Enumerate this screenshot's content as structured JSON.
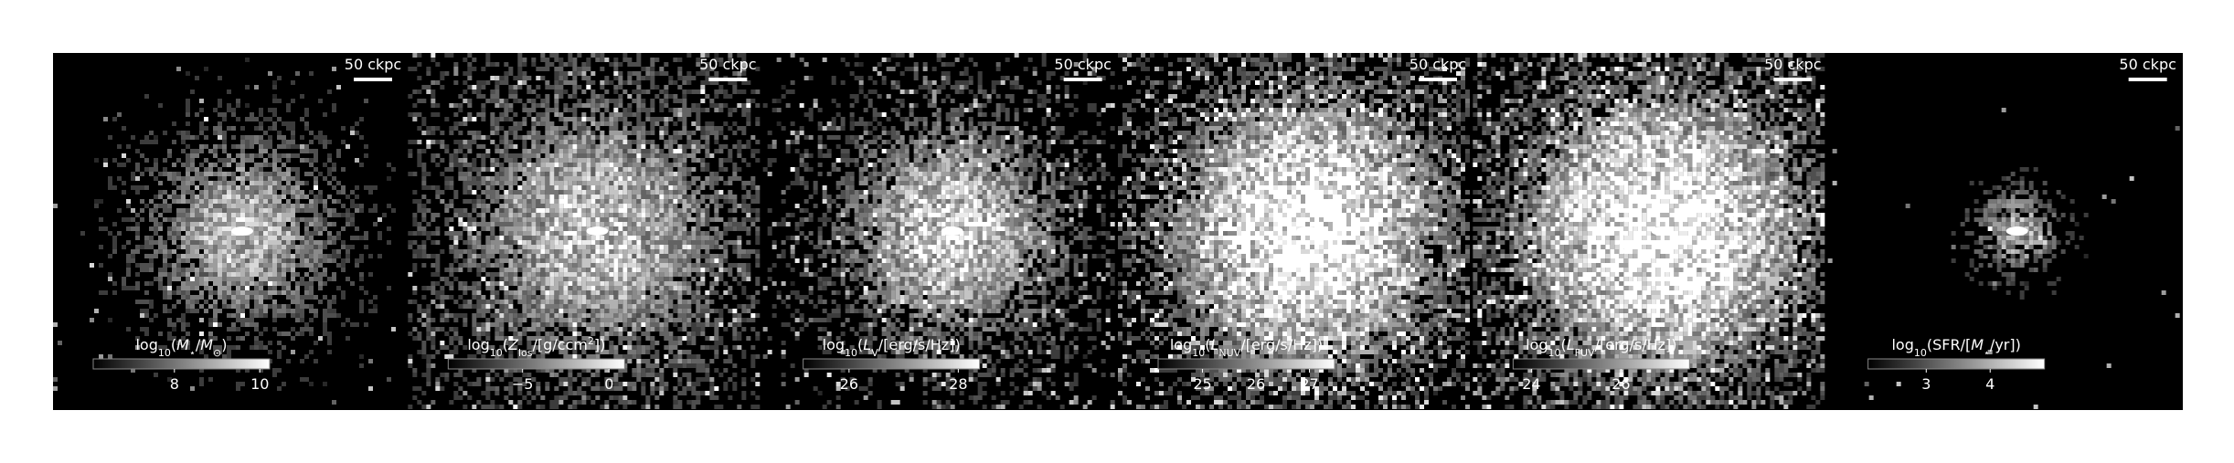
{
  "panels": [
    {
      "scale_bar": "50 ckpc",
      "colorbar": {
        "label": [
          {
            "text": "log"
          },
          {
            "text": "10",
            "sub": true
          },
          {
            "text": "("
          },
          {
            "text": "M",
            "italic": true
          },
          {
            "text": "⋆",
            "sub": true
          },
          {
            "text": "/"
          },
          {
            "text": "M",
            "italic": true
          },
          {
            "text": "⊙",
            "sub": true
          },
          {
            "text": ")"
          }
        ],
        "range": [
          6.1,
          10.23
        ],
        "ticks": [
          8,
          10
        ]
      }
    },
    {
      "scale_bar": "50 ckpc",
      "colorbar": {
        "label": [
          {
            "text": "log"
          },
          {
            "text": "10",
            "sub": true
          },
          {
            "text": "("
          },
          {
            "text": "Z",
            "italic": true
          },
          {
            "text": "los",
            "sub": true
          },
          {
            "text": "/[g/ccm"
          },
          {
            "text": "2",
            "sup": true
          },
          {
            "text": "])"
          }
        ],
        "range": [
          -9.3,
          0.9
        ],
        "ticks": [
          {
            "value": -5,
            "label": "−5"
          },
          0
        ]
      }
    },
    {
      "scale_bar": "50 ckpc",
      "colorbar": {
        "label": [
          {
            "text": "log"
          },
          {
            "text": "10",
            "sub": true
          },
          {
            "text": "("
          },
          {
            "text": "L",
            "italic": true
          },
          {
            "text": "V",
            "sub": true
          },
          {
            "text": "/[erg/s/Hz])"
          }
        ],
        "range": [
          25.16,
          28.39
        ],
        "ticks": [
          26,
          28
        ]
      }
    },
    {
      "scale_bar": "50 ckpc",
      "colorbar": {
        "label": [
          {
            "text": "log"
          },
          {
            "text": "10",
            "sub": true
          },
          {
            "text": "("
          },
          {
            "text": "L",
            "italic": true
          },
          {
            "text": "NUV",
            "sub": true
          },
          {
            "text": "/[erg/s/Hz])"
          }
        ],
        "range": [
          24.17,
          27.47
        ],
        "ticks": [
          25,
          26,
          27
        ]
      }
    },
    {
      "scale_bar": "50 ckpc",
      "colorbar": {
        "label": [
          {
            "text": "log"
          },
          {
            "text": "10",
            "sub": true
          },
          {
            "text": "("
          },
          {
            "text": "L",
            "italic": true
          },
          {
            "text": "FUV",
            "sub": true
          },
          {
            "text": "/[erg/s/Hz])"
          }
        ],
        "range": [
          23.59,
          27.53
        ],
        "ticks": [
          24,
          26
        ]
      }
    },
    {
      "scale_bar": "50 ckpc",
      "colorbar": {
        "label": [
          {
            "text": "log"
          },
          {
            "text": "10",
            "sub": true
          },
          {
            "text": "(SFR/["
          },
          {
            "text": "M",
            "italic": true
          },
          {
            "text": "⋆",
            "sub": true
          },
          {
            "text": "/yr])"
          }
        ],
        "range": [
          2.09,
          4.85
        ],
        "ticks": [
          3,
          4
        ]
      }
    }
  ]
}
